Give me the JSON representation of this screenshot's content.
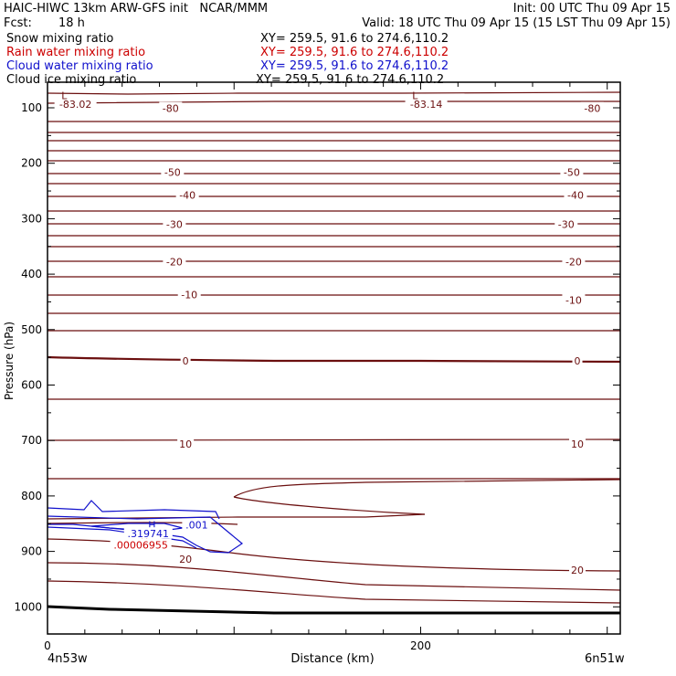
{
  "header": {
    "title": "HAIC-HIWC 13km ARW-GFS init   NCAR/MMM",
    "init": "Init: 00 UTC Thu 09 Apr 15",
    "fcst_label": "Fcst:",
    "fcst_value": "18 h",
    "valid": "Valid: 18 UTC Thu 09 Apr 15 (15 LST Thu 09 Apr 15)",
    "fields": [
      {
        "name": "Snow mixing ratio",
        "xy": "XY= 259.5, 91.6 to 274.6,110.2",
        "color": "#000000"
      },
      {
        "name": "Rain water mixing ratio",
        "xy": "XY= 259.5, 91.6 to 274.6,110.2",
        "color": "#cc0000"
      },
      {
        "name": "Cloud water mixing ratio",
        "xy": "XY= 259.5, 91.6 to 274.6,110.2",
        "color": "#1010cc"
      },
      {
        "name": "Cloud ice mixing ratio",
        "xy": "XY= 259.5, 91.6 to 274.6,110.2",
        "color": "#000000"
      }
    ]
  },
  "chart_data": {
    "type": "line",
    "xlabel": "Distance (km)",
    "ylabel": "Pressure (hPa)",
    "xlim": [
      0,
      307
    ],
    "ylim": [
      1050,
      60
    ],
    "x_ticks": [
      0,
      200
    ],
    "y_ticks": [
      100,
      200,
      300,
      400,
      500,
      600,
      700,
      800,
      900,
      1000
    ],
    "endpoint_left": "4n53w",
    "endpoint_right": "6n51w",
    "temperature_color": "#6b0f0f",
    "contour_labels": [
      {
        "text": "-83.02",
        "x": 15,
        "p": 93
      },
      {
        "text": "-83.14",
        "x": 203,
        "p": 93
      },
      {
        "text": "-80",
        "x": 66,
        "p": 101
      },
      {
        "text": "-80",
        "x": 292,
        "p": 101
      },
      {
        "text": "-50",
        "x": 67,
        "p": 216
      },
      {
        "text": "-50",
        "x": 281,
        "p": 216
      },
      {
        "text": "-40",
        "x": 75,
        "p": 257
      },
      {
        "text": "-40",
        "x": 283,
        "p": 257
      },
      {
        "text": "-30",
        "x": 68,
        "p": 310
      },
      {
        "text": "-30",
        "x": 278,
        "p": 310
      },
      {
        "text": "-20",
        "x": 68,
        "p": 378
      },
      {
        "text": "-20",
        "x": 282,
        "p": 378
      },
      {
        "text": "-10",
        "x": 76,
        "p": 437
      },
      {
        "text": "-10",
        "x": 282,
        "p": 447
      },
      {
        "text": "0",
        "x": 74,
        "p": 556
      },
      {
        "text": "0",
        "x": 284,
        "p": 556
      },
      {
        "text": "10",
        "x": 74,
        "p": 706
      },
      {
        "text": "10",
        "x": 284,
        "p": 706
      },
      {
        "text": "20",
        "x": 74,
        "p": 914
      },
      {
        "text": "20",
        "x": 284,
        "p": 934
      }
    ],
    "extrema_labels": [
      {
        "text": "L",
        "x": 9,
        "p": 78
      },
      {
        "text": "L",
        "x": 197,
        "p": 78
      },
      {
        "text": "H",
        "x": 56,
        "p": 852,
        "color": "#1010cc"
      },
      {
        "text": "H",
        "x": 52,
        "p": 872,
        "color": "#cc0000"
      }
    ],
    "cloud_water_labels": [
      {
        "text": ".319741",
        "x": 54,
        "p": 868
      },
      {
        "text": ".001",
        "x": 80,
        "p": 852
      }
    ],
    "rain_water_labels": [
      {
        "text": ".00006955",
        "x": 50,
        "p": 888
      }
    ]
  }
}
